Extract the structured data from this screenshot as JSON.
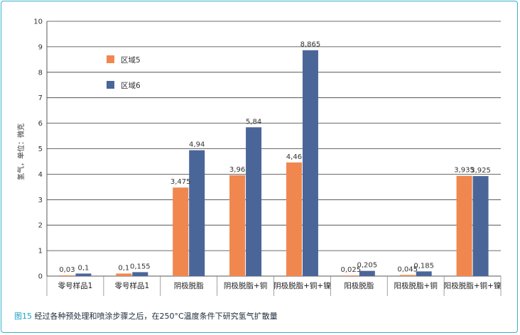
{
  "caption": {
    "figure": "图15",
    "text": "经过各种预处理和喷涂步骤之后，在250°C温度条件下研究氢气扩散量"
  },
  "chart_data": {
    "type": "bar",
    "title": "",
    "xlabel": "",
    "ylabel": "氢气，单位：微克",
    "ylim": [
      0,
      10
    ],
    "yticks": [
      0,
      1,
      2,
      3,
      4,
      5,
      6,
      7,
      8,
      9,
      10
    ],
    "grid": true,
    "legend_position": "top-left",
    "categories": [
      "零号样品1",
      "零号样品1",
      "阴极脱脂",
      "阴极脱脂+铜",
      "阴极脱脂+铜+镍",
      "阳极脱脂",
      "阳极脱脂+铜",
      "阳极脱脂+铜+镍"
    ],
    "series": [
      {
        "name": "区域5",
        "color": "#f0874f",
        "values": [
          0.03,
          0.1,
          3.475,
          3.96,
          4.46,
          0.025,
          0.045,
          3.935
        ],
        "labels": [
          "0,03",
          "0,1",
          "3,475",
          "3,96",
          "4,46",
          "0,025",
          "0,045",
          "3,935"
        ]
      },
      {
        "name": "区域6",
        "color": "#4a6699",
        "values": [
          0.1,
          0.155,
          4.94,
          5.84,
          8.865,
          0.205,
          0.185,
          3.925
        ],
        "labels": [
          "0,1",
          "0,155",
          "4,94",
          "5,84",
          "8,865",
          "0,205",
          "0,185",
          "3,925"
        ]
      }
    ]
  }
}
